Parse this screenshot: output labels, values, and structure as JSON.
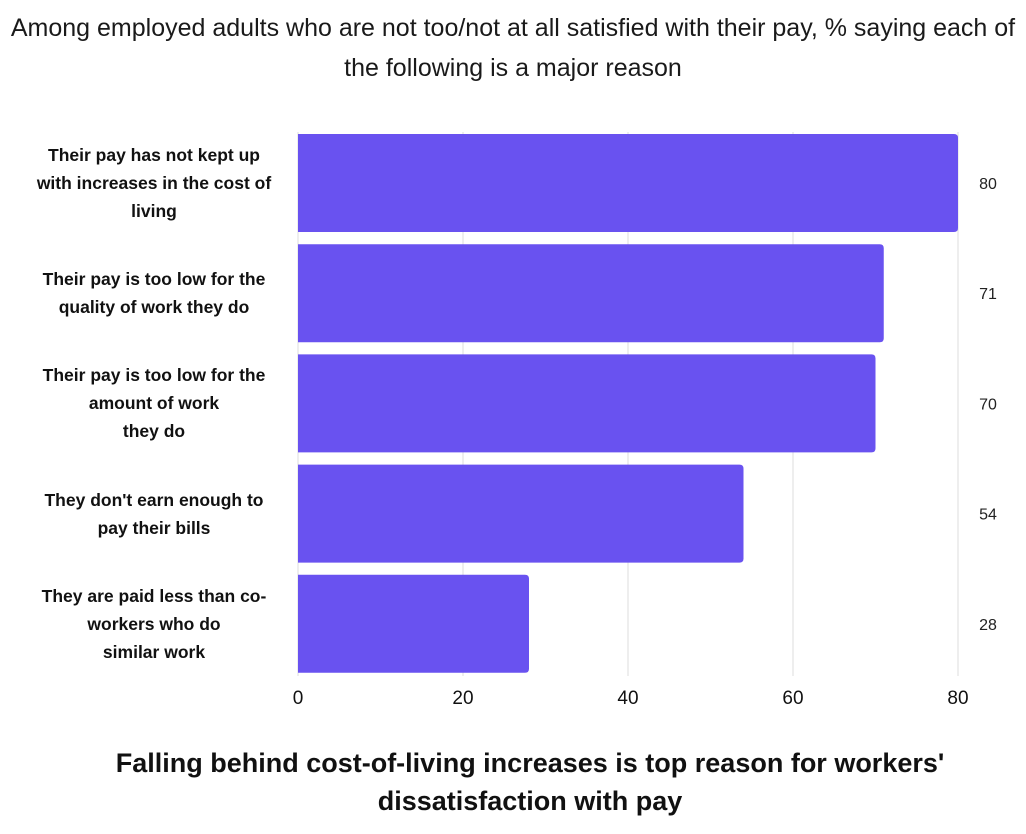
{
  "chart_data": {
    "type": "bar",
    "orientation": "horizontal",
    "subtitle": "Among employed adults who are not too/not at all satisfied with their pay, % saying each of the following is a major reason",
    "title": "Falling behind cost-of-living increases is top reason for workers' dissatisfaction with pay",
    "categories": [
      "Their pay has not kept up with increases in the cost of living",
      "Their pay is too low for the quality of work they do",
      "Their pay is too low for the amount of work they do",
      "They don't earn enough to pay their bills",
      "They are paid less than co-workers who do similar work"
    ],
    "category_lines": [
      [
        "Their pay has not kept up",
        "with increases in the cost of",
        "living"
      ],
      [
        "Their pay is too low for the",
        "quality of work they do"
      ],
      [
        "Their pay is too low for the",
        "amount of work",
        "they do"
      ],
      [
        "They don't earn enough to",
        "pay their bills"
      ],
      [
        "They are paid less than co-",
        "workers who do",
        "similar work"
      ]
    ],
    "values": [
      80,
      71,
      70,
      54,
      28
    ],
    "value_labels": [
      "80",
      "71",
      "70",
      "54",
      "28"
    ],
    "xlim": [
      0,
      80
    ],
    "xticks": [
      0,
      20,
      40,
      60,
      80
    ],
    "xtick_labels": [
      "0",
      "20",
      "40",
      "60",
      "80"
    ],
    "grid": true,
    "bar_color": "#6952f0",
    "grid_color": "#dcdcdc"
  }
}
